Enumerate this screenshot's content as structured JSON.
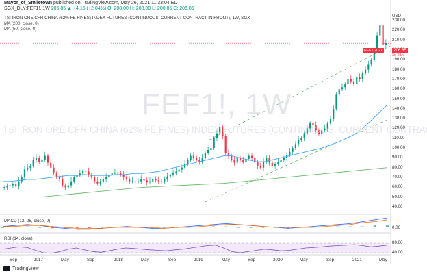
{
  "header": {
    "author": "Mayor_of_Smiletown",
    "published": "published on TradingView.com, May 26, 2021 11:33:04 EDT",
    "symbol_line": "SGX_DLY:FEF1!, 1W",
    "ohlc": "206.85 ▲ +4.15 (+2.04%) O: 208.00 H: 208.00 L: 200.85 C: 206.85"
  },
  "indicators": {
    "title": "TSI IRON ORE CFR CHINA (62% FE FINES) INDEX FUTURES (CONTINUOUS: CURRENT CONTRACT IN FRONT), 1W, SGX",
    "ma1": "MA (200, close, 0)",
    "ma2": "MA (50, close, 0)",
    "macd": "MACD (12, 26, close, 9)",
    "rsi": "RSI (14, close)"
  },
  "watermark": {
    "symbol": "FEF1!, 1W",
    "desc": "TSI IRON ORE CFR CHINA (62% FE FINES) INDEX FUTURES (CONTINUOUS: CURRENT CONTRACT IN FRONT)"
  },
  "price_axis": {
    "currency": "USD",
    "ticks": [
      "230.00",
      "220.00",
      "210.00",
      "200.00",
      "190.00",
      "180.00",
      "170.00",
      "160.00",
      "150.00",
      "140.00",
      "130.00",
      "120.00",
      "110.00",
      "100.00",
      "90.00",
      "80.00",
      "70.00",
      "60.00",
      "50.00",
      "40.00"
    ],
    "current_label": "206.85",
    "current_side_label": "FEF1!2021",
    "countdown": "3d 21h"
  },
  "macd_axis": {
    "ticks": [
      "0.00"
    ]
  },
  "rsi_axis": {
    "ticks": [
      "80.00",
      "40.00"
    ]
  },
  "time_axis": [
    "Sep",
    "2017",
    "May",
    "Sep",
    "2018",
    "May",
    "Sep",
    "2019",
    "May",
    "Sep",
    "2020",
    "May",
    "Sep",
    "2021",
    "May"
  ],
  "footer": {
    "brand": "TradingView"
  },
  "colors": {
    "up": "#089981",
    "down": "#f23645",
    "ma200": "#66bb6a",
    "ma50": "#42a5f5",
    "channel": "#66bb6a",
    "macd_line": "#2962ff",
    "signal_line": "#ff6d00",
    "rsi_line": "#7e57c2",
    "rsi_band": "#f3e9fb"
  },
  "chart_data": {
    "type": "candlestick",
    "title": "TSI IRON ORE CFR CHINA (62% FE FINES) INDEX FUTURES (CONTINUOUS: CURRENT CONTRACT IN FRONT), 1W, SGX",
    "ylabel": "USD",
    "ylim": [
      40,
      235
    ],
    "candle_close": [
      60,
      61,
      62,
      63,
      61,
      66,
      70,
      78,
      80,
      82,
      88,
      90,
      86,
      88,
      92,
      85,
      80,
      75,
      70,
      68,
      62,
      60,
      62,
      66,
      70,
      72,
      74,
      77,
      76,
      73,
      70,
      66,
      64,
      66,
      68,
      70,
      72,
      74,
      75,
      74,
      73,
      70,
      68,
      66,
      66,
      65,
      66,
      68,
      67,
      65,
      66,
      68,
      67,
      66,
      66,
      68,
      71,
      73,
      75,
      76,
      78,
      80,
      84,
      88,
      92,
      90,
      88,
      86,
      90,
      95,
      98,
      100,
      110,
      115,
      121,
      112,
      95,
      92,
      88,
      85,
      90,
      88,
      86,
      89,
      92,
      90,
      86,
      82,
      80,
      86,
      90,
      85,
      82,
      84,
      86,
      88,
      90,
      93,
      96,
      100,
      104,
      108,
      110,
      115,
      120,
      126,
      123,
      118,
      114,
      118,
      120,
      125,
      130,
      140,
      155,
      160,
      162,
      165,
      170,
      168,
      165,
      172,
      170,
      176,
      180,
      185,
      190,
      200,
      215,
      225,
      205,
      206.85
    ],
    "ma50": [
      66,
      66,
      67,
      68,
      68,
      69,
      70,
      71,
      72,
      72,
      73,
      72,
      72,
      72,
      73,
      73,
      74,
      74,
      75,
      76,
      78,
      80,
      82,
      84,
      86,
      88,
      90,
      92,
      92,
      90,
      88,
      86,
      86,
      88,
      90,
      92,
      94,
      96,
      98,
      100,
      103,
      106,
      110,
      114,
      120,
      128,
      136,
      144
    ],
    "ma200": [
      50,
      52,
      54,
      56,
      58,
      60,
      61,
      62,
      63,
      64,
      66,
      68,
      70,
      72,
      74,
      76,
      78,
      80
    ],
    "macd": [
      1,
      2,
      3,
      2,
      0,
      -1,
      -2,
      -2,
      -1,
      0,
      1,
      0,
      -1,
      -1,
      0,
      1,
      2,
      3,
      4,
      3,
      2,
      1,
      0,
      -1,
      0,
      1,
      2,
      3,
      4,
      6,
      8,
      10
    ],
    "signal": [
      1,
      1,
      2,
      2,
      1,
      0,
      -1,
      -1,
      -1,
      0,
      0,
      0,
      0,
      -1,
      0,
      0,
      1,
      2,
      3,
      3,
      2,
      1,
      0,
      0,
      0,
      0,
      1,
      2,
      3,
      5,
      6,
      8
    ],
    "rsi": [
      55,
      60,
      65,
      62,
      50,
      40,
      38,
      45,
      55,
      60,
      52,
      45,
      42,
      48,
      55,
      60,
      58,
      55,
      52,
      50,
      48,
      52,
      55,
      60,
      65,
      70,
      72,
      60,
      45,
      40,
      45,
      50,
      55,
      52,
      48,
      50,
      55,
      60,
      62,
      65,
      68,
      70,
      72,
      74,
      70,
      65,
      68,
      72
    ]
  }
}
